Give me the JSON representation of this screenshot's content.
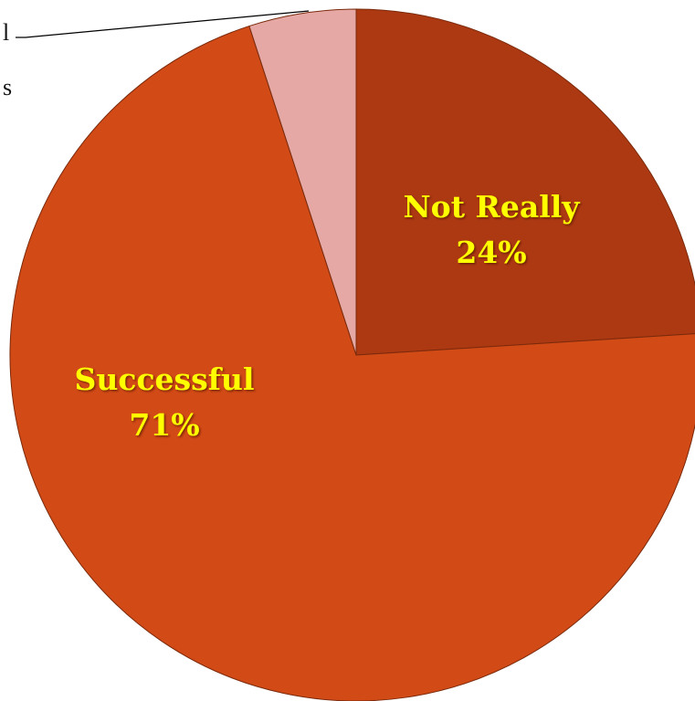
{
  "chart_data": {
    "type": "pie",
    "title": "",
    "slices": [
      {
        "label": "Not Really",
        "value": 24,
        "percent_label": "24%",
        "color": "#ad3912",
        "label_shown": true
      },
      {
        "label": "Successful",
        "value": 71,
        "percent_label": "71%",
        "color": "#d24a16",
        "label_shown": true
      },
      {
        "label": "",
        "value": 5,
        "percent_label": "",
        "color": "#e6a8a4",
        "label_shown": false
      }
    ],
    "clipped_label_fragments": [
      "l",
      "s"
    ],
    "start_angle_deg": 0,
    "direction": "clockwise",
    "legend": "none",
    "label_color": "#ffff00"
  }
}
